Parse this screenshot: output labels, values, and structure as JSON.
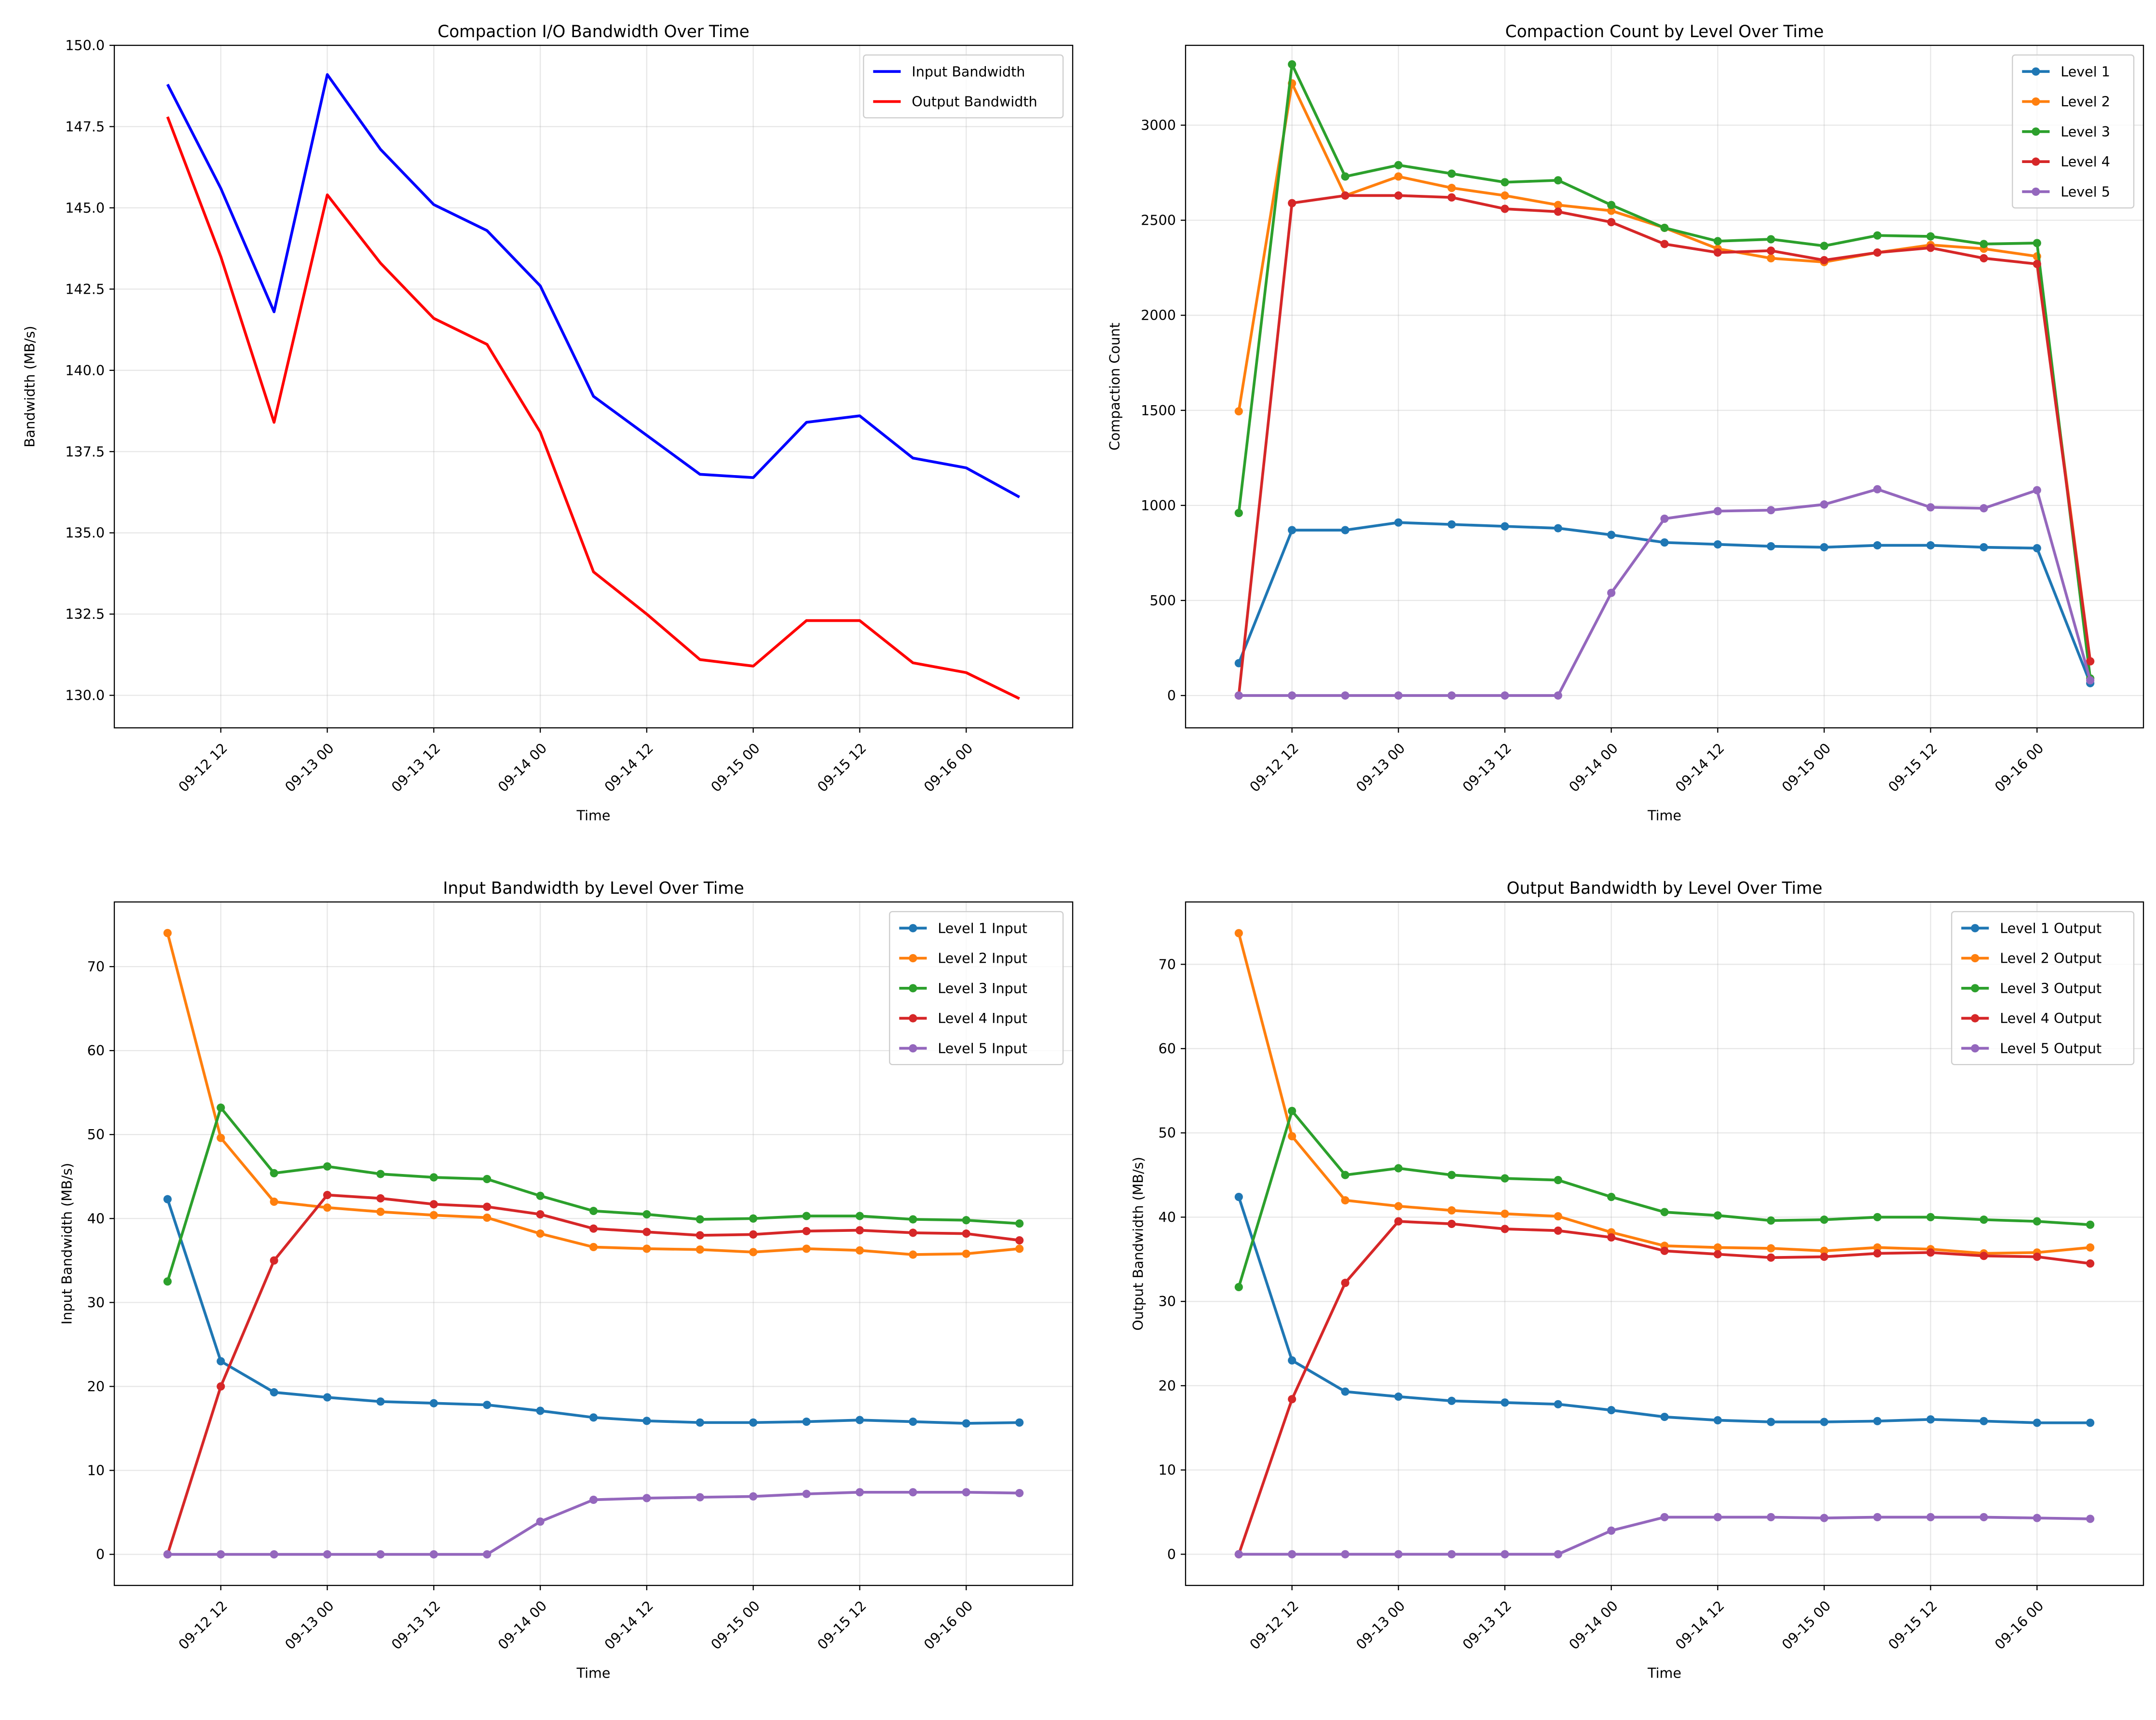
{
  "chart_data": [
    {
      "type": "line",
      "title": "Compaction I/O Bandwidth Over Time",
      "xlabel": "Time",
      "ylabel": "Bandwidth (MB/s)",
      "ylim": [
        129.0,
        150.0
      ],
      "yticks": [
        130.0,
        132.5,
        135.0,
        137.5,
        140.0,
        142.5,
        145.0,
        147.5,
        150.0
      ],
      "ytick_labels": [
        "130.0",
        "132.5",
        "135.0",
        "137.5",
        "140.0",
        "142.5",
        "145.0",
        "147.5",
        "150.0"
      ],
      "xtick_labels": [
        "09-12 12",
        "09-13 00",
        "09-13 12",
        "09-14 00",
        "09-14 12",
        "09-15 00",
        "09-15 12",
        "09-16 00"
      ],
      "legend": "top-right",
      "grid": true,
      "markers": false,
      "x": [
        "09-12 06",
        "09-12 12",
        "09-12 18",
        "09-13 00",
        "09-13 06",
        "09-13 12",
        "09-13 18",
        "09-14 00",
        "09-14 06",
        "09-14 12",
        "09-14 18",
        "09-15 00",
        "09-15 06",
        "09-15 12",
        "09-15 18",
        "09-16 00",
        "09-16 06"
      ],
      "series": [
        {
          "name": "Input Bandwidth",
          "color": "#0000ff",
          "values": [
            148.8,
            145.6,
            141.8,
            149.1,
            146.8,
            145.1,
            144.3,
            142.6,
            139.2,
            138.0,
            136.8,
            136.7,
            138.4,
            138.6,
            137.3,
            137.0,
            136.1
          ]
        },
        {
          "name": "Output Bandwidth",
          "color": "#ff0000",
          "values": [
            147.8,
            143.5,
            138.4,
            145.4,
            143.3,
            141.6,
            140.8,
            138.1,
            133.8,
            132.5,
            131.1,
            130.9,
            132.3,
            132.3,
            131.0,
            130.7,
            129.9
          ]
        }
      ]
    },
    {
      "type": "line",
      "title": "Compaction Count by Level Over Time",
      "xlabel": "Time",
      "ylabel": "Compaction Count",
      "ylim": [
        -170,
        3420
      ],
      "yticks": [
        0,
        500,
        1000,
        1500,
        2000,
        2500,
        3000
      ],
      "ytick_labels": [
        "0",
        "500",
        "1000",
        "1500",
        "2000",
        "2500",
        "3000"
      ],
      "xtick_labels": [
        "09-12 12",
        "09-13 00",
        "09-13 12",
        "09-14 00",
        "09-14 12",
        "09-15 00",
        "09-15 12",
        "09-16 00"
      ],
      "legend": "top-right",
      "grid": true,
      "markers": true,
      "x": [
        "09-12 06",
        "09-12 12",
        "09-12 18",
        "09-13 00",
        "09-13 06",
        "09-13 12",
        "09-13 18",
        "09-14 00",
        "09-14 06",
        "09-14 12",
        "09-14 18",
        "09-15 00",
        "09-15 06",
        "09-15 12",
        "09-15 18",
        "09-16 00",
        "09-16 06"
      ],
      "series": [
        {
          "name": "Level 1",
          "color": "#1f77b4",
          "values": [
            170,
            870,
            870,
            910,
            900,
            890,
            880,
            845,
            805,
            795,
            785,
            780,
            790,
            790,
            780,
            775,
            65
          ]
        },
        {
          "name": "Level 2",
          "color": "#ff7f0e",
          "values": [
            1495,
            3220,
            2630,
            2730,
            2670,
            2630,
            2580,
            2550,
            2460,
            2350,
            2300,
            2280,
            2330,
            2370,
            2350,
            2310,
            180
          ]
        },
        {
          "name": "Level 3",
          "color": "#2ca02c",
          "values": [
            960,
            3320,
            2730,
            2790,
            2745,
            2700,
            2710,
            2580,
            2460,
            2390,
            2400,
            2365,
            2420,
            2415,
            2375,
            2380,
            90
          ]
        },
        {
          "name": "Level 4",
          "color": "#d62728",
          "values": [
            0,
            2590,
            2630,
            2630,
            2620,
            2560,
            2545,
            2490,
            2375,
            2330,
            2340,
            2290,
            2330,
            2355,
            2300,
            2270,
            180
          ]
        },
        {
          "name": "Level 5",
          "color": "#9467bd",
          "values": [
            0,
            0,
            0,
            0,
            0,
            0,
            0,
            540,
            930,
            970,
            975,
            1005,
            1085,
            990,
            985,
            1080,
            80
          ]
        }
      ]
    },
    {
      "type": "line",
      "title": "Input Bandwidth by Level Over Time",
      "xlabel": "Time",
      "ylabel": "Input Bandwidth (MB/s)",
      "ylim": [
        -3.7,
        77.7
      ],
      "yticks": [
        0,
        10,
        20,
        30,
        40,
        50,
        60,
        70
      ],
      "ytick_labels": [
        "0",
        "10",
        "20",
        "30",
        "40",
        "50",
        "60",
        "70"
      ],
      "xtick_labels": [
        "09-12 12",
        "09-13 00",
        "09-13 12",
        "09-14 00",
        "09-14 12",
        "09-15 00",
        "09-15 12",
        "09-16 00"
      ],
      "legend": "top-right",
      "grid": true,
      "markers": true,
      "x": [
        "09-12 06",
        "09-12 12",
        "09-12 18",
        "09-13 00",
        "09-13 06",
        "09-13 12",
        "09-13 18",
        "09-14 00",
        "09-14 06",
        "09-14 12",
        "09-14 18",
        "09-15 00",
        "09-15 06",
        "09-15 12",
        "09-15 18",
        "09-16 00",
        "09-16 06"
      ],
      "series": [
        {
          "name": "Level 1 Input",
          "color": "#1f77b4",
          "values": [
            42.3,
            23.0,
            19.3,
            18.7,
            18.2,
            18.0,
            17.8,
            17.1,
            16.3,
            15.9,
            15.7,
            15.7,
            15.8,
            16.0,
            15.8,
            15.6,
            15.7
          ]
        },
        {
          "name": "Level 2 Input",
          "color": "#ff7f0e",
          "values": [
            74.0,
            49.6,
            42.0,
            41.3,
            40.8,
            40.4,
            40.1,
            38.2,
            36.6,
            36.4,
            36.3,
            36.0,
            36.4,
            36.2,
            35.7,
            35.8,
            36.4
          ]
        },
        {
          "name": "Level 3 Input",
          "color": "#2ca02c",
          "values": [
            32.5,
            53.2,
            45.4,
            46.2,
            45.3,
            44.9,
            44.7,
            42.7,
            40.9,
            40.5,
            39.9,
            40.0,
            40.3,
            40.3,
            39.9,
            39.8,
            39.4
          ]
        },
        {
          "name": "Level 4 Input",
          "color": "#d62728",
          "values": [
            0,
            20.0,
            35.0,
            42.8,
            42.4,
            41.7,
            41.4,
            40.5,
            38.8,
            38.4,
            38.0,
            38.1,
            38.5,
            38.6,
            38.3,
            38.2,
            37.4
          ]
        },
        {
          "name": "Level 5 Input",
          "color": "#9467bd",
          "values": [
            0,
            0,
            0,
            0,
            0,
            0,
            0,
            3.9,
            6.5,
            6.7,
            6.8,
            6.9,
            7.2,
            7.4,
            7.4,
            7.4,
            7.3
          ]
        }
      ]
    },
    {
      "type": "line",
      "title": "Output Bandwidth by Level Over Time",
      "xlabel": "Time",
      "ylabel": "Output Bandwidth (MB/s)",
      "ylim": [
        -3.7,
        77.4
      ],
      "yticks": [
        0,
        10,
        20,
        30,
        40,
        50,
        60,
        70
      ],
      "ytick_labels": [
        "0",
        "10",
        "20",
        "30",
        "40",
        "50",
        "60",
        "70"
      ],
      "xtick_labels": [
        "09-12 12",
        "09-13 00",
        "09-13 12",
        "09-14 00",
        "09-14 12",
        "09-15 00",
        "09-15 12",
        "09-16 00"
      ],
      "legend": "top-right",
      "grid": true,
      "markers": true,
      "x": [
        "09-12 06",
        "09-12 12",
        "09-12 18",
        "09-13 00",
        "09-13 06",
        "09-13 12",
        "09-13 18",
        "09-14 00",
        "09-14 06",
        "09-14 12",
        "09-14 18",
        "09-15 00",
        "09-15 06",
        "09-15 12",
        "09-15 18",
        "09-16 00",
        "09-16 06"
      ],
      "series": [
        {
          "name": "Level 1 Output",
          "color": "#1f77b4",
          "values": [
            42.4,
            23.0,
            19.3,
            18.7,
            18.2,
            18.0,
            17.8,
            17.1,
            16.3,
            15.9,
            15.7,
            15.7,
            15.8,
            16.0,
            15.8,
            15.6,
            15.6
          ]
        },
        {
          "name": "Level 2 Output",
          "color": "#ff7f0e",
          "values": [
            73.7,
            49.6,
            42.0,
            41.3,
            40.8,
            40.4,
            40.1,
            38.2,
            36.6,
            36.4,
            36.3,
            36.0,
            36.4,
            36.2,
            35.7,
            35.8,
            36.4
          ]
        },
        {
          "name": "Level 3 Output",
          "color": "#2ca02c",
          "values": [
            31.7,
            52.6,
            45.0,
            45.8,
            45.0,
            44.6,
            44.4,
            42.4,
            40.6,
            40.2,
            39.6,
            39.7,
            40.0,
            40.0,
            39.7,
            39.5,
            39.1
          ]
        },
        {
          "name": "Level 4 Output",
          "color": "#d62728",
          "values": [
            0,
            18.4,
            32.2,
            39.5,
            39.2,
            38.6,
            38.4,
            37.6,
            36.0,
            35.6,
            35.2,
            35.3,
            35.7,
            35.8,
            35.4,
            35.3,
            34.5
          ]
        },
        {
          "name": "Level 5 Output",
          "color": "#9467bd",
          "values": [
            0,
            0,
            0,
            0,
            0,
            0,
            0,
            2.8,
            4.4,
            4.4,
            4.4,
            4.3,
            4.4,
            4.4,
            4.4,
            4.3,
            4.2
          ]
        }
      ]
    }
  ]
}
